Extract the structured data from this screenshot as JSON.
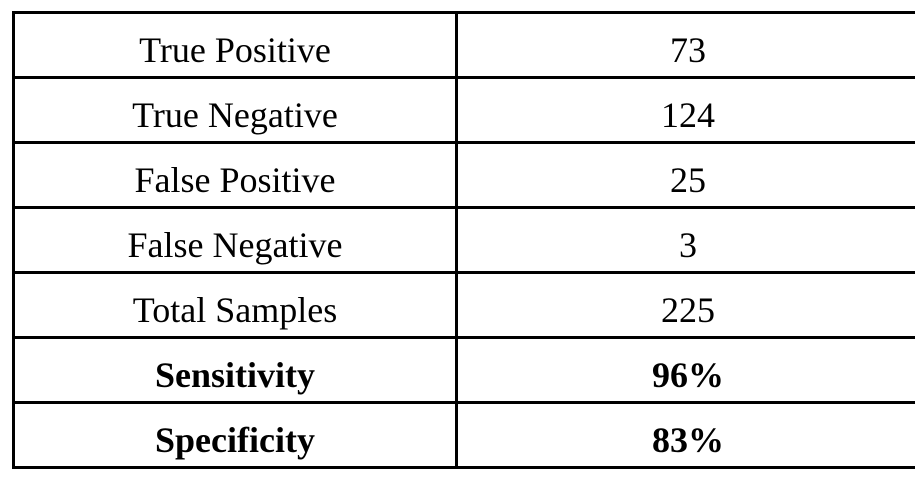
{
  "table": {
    "rows": [
      {
        "label": "True Positive",
        "value": "73",
        "bold": false
      },
      {
        "label": "True Negative",
        "value": "124",
        "bold": false
      },
      {
        "label": "False Positive",
        "value": "25",
        "bold": false
      },
      {
        "label": "False Negative",
        "value": "3",
        "bold": false
      },
      {
        "label": "Total Samples",
        "value": "225",
        "bold": false
      },
      {
        "label": "Sensitivity",
        "value": "96%",
        "bold": true
      },
      {
        "label": "Specificity",
        "value": "83%",
        "bold": true
      }
    ]
  }
}
